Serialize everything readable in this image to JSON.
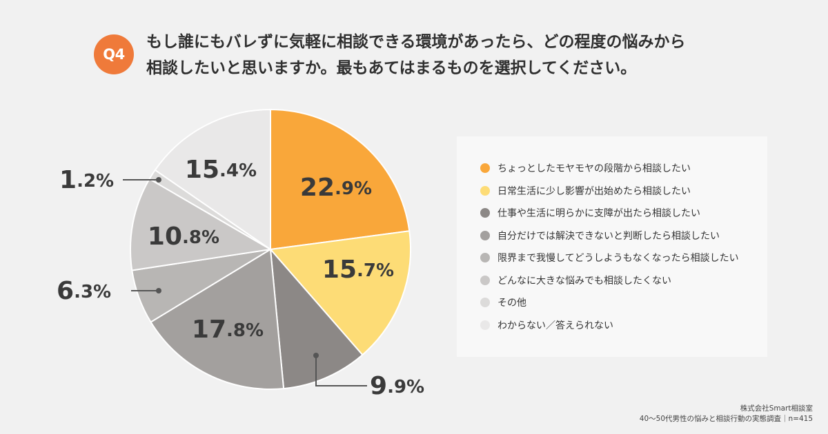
{
  "header": {
    "badge": "Q4",
    "title_line1": "もし誰にもバレずに気軽に相談できる環境があったら、どの程度の悩みから",
    "title_line2": "相談したいと思いますか。最もあてはまるものを選択してください。"
  },
  "chart_data": {
    "type": "pie",
    "start": "top, clockwise",
    "slices": [
      {
        "label": "ちょっとしたモヤモヤの段階から相談したい",
        "value": 22.9,
        "display": "22.9%",
        "color": "#f9a73a",
        "label_pos": "inside"
      },
      {
        "label": "日常生活に少し影響が出始めたら相談したい",
        "value": 15.7,
        "display": "15.7%",
        "color": "#fddc76",
        "label_pos": "inside"
      },
      {
        "label": "仕事や生活に明らかに支障が出たら相談したい",
        "value": 9.9,
        "display": "9.9%",
        "color": "#8c8886",
        "label_pos": "outside"
      },
      {
        "label": "自分だけでは解決できないと判断したら相談したい",
        "value": 17.8,
        "display": "17.8%",
        "color": "#a3a09e",
        "label_pos": "inside"
      },
      {
        "label": "限界まで我慢してどうしようもなくなったら相談したい",
        "value": 6.3,
        "display": "6.3%",
        "color": "#b8b6b4",
        "label_pos": "outside"
      },
      {
        "label": "どんなに大きな悩みでも相談したくない",
        "value": 10.8,
        "display": "10.8%",
        "color": "#cac8c7",
        "label_pos": "inside"
      },
      {
        "label": "その他",
        "value": 1.2,
        "display": "1.2%",
        "color": "#dcdbda",
        "label_pos": "outside"
      },
      {
        "label": "わからない／答えられない",
        "value": 15.4,
        "display": "15.4%",
        "color": "#e9e8e8",
        "label_pos": "inside"
      }
    ]
  },
  "source": {
    "line1": "株式会社Smart相談室",
    "line2": "40〜50代男性の悩みと相談行動の実態調査｜n=415"
  }
}
